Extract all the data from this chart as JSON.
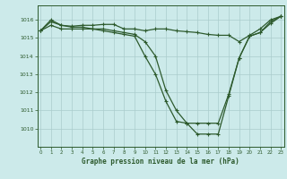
{
  "xlabel": "Graphe pression niveau de la mer (hPa)",
  "bg_color": "#cceaea",
  "grid_color": "#aacccc",
  "line_color": "#2d5a2d",
  "marker": "+",
  "x_ticks": [
    0,
    1,
    2,
    3,
    4,
    5,
    6,
    7,
    8,
    9,
    10,
    11,
    12,
    13,
    14,
    15,
    16,
    17,
    18,
    19,
    20,
    21,
    22,
    23
  ],
  "y_ticks": [
    1010,
    1011,
    1012,
    1013,
    1014,
    1015,
    1016
  ],
  "ylim": [
    1009.0,
    1016.8
  ],
  "xlim": [
    -0.3,
    23.3
  ],
  "series1": [
    1015.4,
    1015.9,
    1015.7,
    1015.6,
    1015.6,
    1015.5,
    1015.4,
    1015.3,
    1015.2,
    1015.1,
    1014.0,
    1013.0,
    1011.5,
    1010.4,
    1010.3,
    1009.7,
    1009.7,
    1009.7,
    1011.8,
    1013.9,
    1015.1,
    1015.3,
    1015.9,
    1016.2
  ],
  "series2": [
    1015.4,
    1015.7,
    1015.5,
    1015.5,
    1015.5,
    1015.5,
    1015.5,
    1015.4,
    1015.3,
    1015.2,
    1014.8,
    1014.0,
    1012.1,
    1011.0,
    1010.3,
    1010.3,
    1010.3,
    1010.3,
    1011.9,
    1013.9,
    1015.1,
    1015.3,
    1015.8,
    1016.2
  ],
  "series3": [
    1015.4,
    1016.0,
    1015.7,
    1015.65,
    1015.7,
    1015.7,
    1015.75,
    1015.75,
    1015.5,
    1015.5,
    1015.4,
    1015.5,
    1015.5,
    1015.4,
    1015.35,
    1015.3,
    1015.2,
    1015.15,
    1015.15,
    1014.8,
    1015.15,
    1015.5,
    1016.0,
    1016.2
  ]
}
